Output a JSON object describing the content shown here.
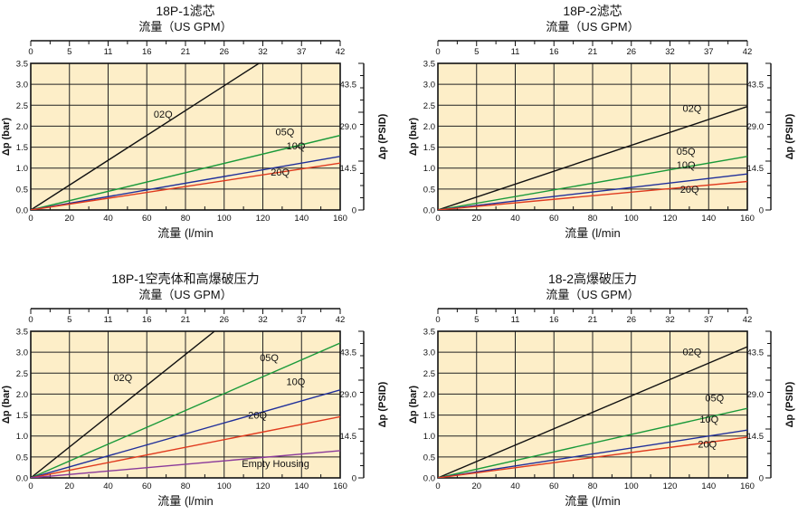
{
  "chart_data": [
    {
      "type": "line",
      "title": "18P-1滤芯",
      "top_axis_label": "流量（US GPM）",
      "xlabel": "流量 (l/min",
      "ylabel": "Δp (bar)",
      "ylabel_right": "Δp (PSID)",
      "x_ticks_bottom": [
        "0",
        "20",
        "40",
        "60",
        "80",
        "100",
        "120",
        "140",
        "160"
      ],
      "x_ticks_top": [
        "0",
        "5",
        "11",
        "16",
        "21",
        "26",
        "32",
        "37",
        "42"
      ],
      "y_ticks_left": [
        "0.0",
        "0.5",
        "1.0",
        "1.5",
        "2.0",
        "2.5",
        "3.0",
        "3.5"
      ],
      "y_ticks_right": [
        "0",
        "14.5",
        "29.0",
        "43.5"
      ],
      "xlim": [
        0,
        160
      ],
      "ylim": [
        0,
        3.5
      ],
      "series": [
        {
          "name": "02Q",
          "color": "#111111",
          "x": [
            0,
            118
          ],
          "y": [
            0,
            3.5
          ]
        },
        {
          "name": "05Q",
          "color": "#1a9a3a",
          "x": [
            0,
            160
          ],
          "y": [
            0,
            1.78
          ]
        },
        {
          "name": "10Q",
          "color": "#1f2f9a",
          "x": [
            0,
            160
          ],
          "y": [
            0,
            1.28
          ]
        },
        {
          "name": "20Q",
          "color": "#e03a1e",
          "x": [
            0,
            160
          ],
          "y": [
            0,
            1.12
          ]
        }
      ]
    },
    {
      "type": "line",
      "title": "18P-2滤芯",
      "top_axis_label": "流量（US GPM）",
      "xlabel": "流量 (l/min",
      "ylabel": "Δp (bar)",
      "ylabel_right": "Δp (PSID)",
      "x_ticks_bottom": [
        "0",
        "20",
        "40",
        "60",
        "80",
        "100",
        "120",
        "140",
        "160"
      ],
      "x_ticks_top": [
        "0",
        "5",
        "11",
        "16",
        "21",
        "26",
        "32",
        "37",
        "42"
      ],
      "y_ticks_left": [
        "0.0",
        "0.5",
        "1.0",
        "1.5",
        "2.0",
        "2.5",
        "3.0",
        "3.5"
      ],
      "y_ticks_right": [
        "0",
        "14.5",
        "29.0",
        "43.5"
      ],
      "xlim": [
        0,
        160
      ],
      "ylim": [
        0,
        3.5
      ],
      "series": [
        {
          "name": "02Q",
          "color": "#111111",
          "x": [
            0,
            160
          ],
          "y": [
            0,
            2.47
          ]
        },
        {
          "name": "05Q",
          "color": "#1a9a3a",
          "x": [
            0,
            160
          ],
          "y": [
            0,
            1.28
          ]
        },
        {
          "name": "10Q",
          "color": "#1f2f9a",
          "x": [
            0,
            160
          ],
          "y": [
            0,
            0.86
          ]
        },
        {
          "name": "20Q",
          "color": "#e03a1e",
          "x": [
            0,
            160
          ],
          "y": [
            0,
            0.68
          ]
        }
      ]
    },
    {
      "type": "line",
      "title": "18P-1空壳体和高爆破压力",
      "top_axis_label": "流量（US GPM）",
      "xlabel": "流量 (l/min",
      "ylabel": "Δp (bar)",
      "ylabel_right": "Δp (PSID)",
      "x_ticks_bottom": [
        "0",
        "20",
        "40",
        "60",
        "80",
        "100",
        "120",
        "140",
        "160"
      ],
      "x_ticks_top": [
        "0",
        "5",
        "11",
        "16",
        "21",
        "26",
        "32",
        "37",
        "42"
      ],
      "y_ticks_left": [
        "0.0",
        "0.5",
        "1.0",
        "1.5",
        "2.0",
        "2.5",
        "3.0",
        "3.5"
      ],
      "y_ticks_right": [
        "0",
        "14.5",
        "29.0",
        "43.5"
      ],
      "xlim": [
        0,
        160
      ],
      "ylim": [
        0,
        3.5
      ],
      "series": [
        {
          "name": "02Q",
          "color": "#111111",
          "x": [
            0,
            95
          ],
          "y": [
            0,
            3.5
          ]
        },
        {
          "name": "05Q",
          "color": "#1a9a3a",
          "x": [
            0,
            160
          ],
          "y": [
            0,
            3.22
          ]
        },
        {
          "name": "10Q",
          "color": "#1f2f9a",
          "x": [
            0,
            160
          ],
          "y": [
            0,
            2.1
          ]
        },
        {
          "name": "20Q",
          "color": "#e03a1e",
          "x": [
            0,
            160
          ],
          "y": [
            0,
            1.46
          ]
        },
        {
          "name": "Empty Housing",
          "color": "#8a3a9a",
          "x": [
            0,
            160
          ],
          "y": [
            0,
            0.65
          ]
        }
      ]
    },
    {
      "type": "line",
      "title": "18-2高爆破压力",
      "top_axis_label": "流量（US GPM）",
      "xlabel": "流量 (l/min",
      "ylabel": "Δp (bar)",
      "ylabel_right": "Δp (PSID)",
      "x_ticks_bottom": [
        "0",
        "20",
        "40",
        "60",
        "80",
        "100",
        "120",
        "140",
        "160"
      ],
      "x_ticks_top": [
        "0",
        "5",
        "11",
        "16",
        "21",
        "26",
        "32",
        "37",
        "42"
      ],
      "y_ticks_left": [
        "0.0",
        "0.5",
        "1.0",
        "1.5",
        "2.0",
        "2.5",
        "3.0",
        "3.5"
      ],
      "y_ticks_right": [
        "0",
        "14.5",
        "29.0",
        "43.5"
      ],
      "xlim": [
        0,
        160
      ],
      "ylim": [
        0,
        3.5
      ],
      "series": [
        {
          "name": "02Q",
          "color": "#111111",
          "x": [
            0,
            160
          ],
          "y": [
            0,
            3.13
          ]
        },
        {
          "name": "05Q",
          "color": "#1a9a3a",
          "x": [
            0,
            160
          ],
          "y": [
            0,
            1.66
          ]
        },
        {
          "name": "10Q",
          "color": "#1f2f9a",
          "x": [
            0,
            160
          ],
          "y": [
            0,
            1.14
          ]
        },
        {
          "name": "20Q",
          "color": "#e03a1e",
          "x": [
            0,
            160
          ],
          "y": [
            0,
            0.97
          ]
        }
      ]
    }
  ]
}
